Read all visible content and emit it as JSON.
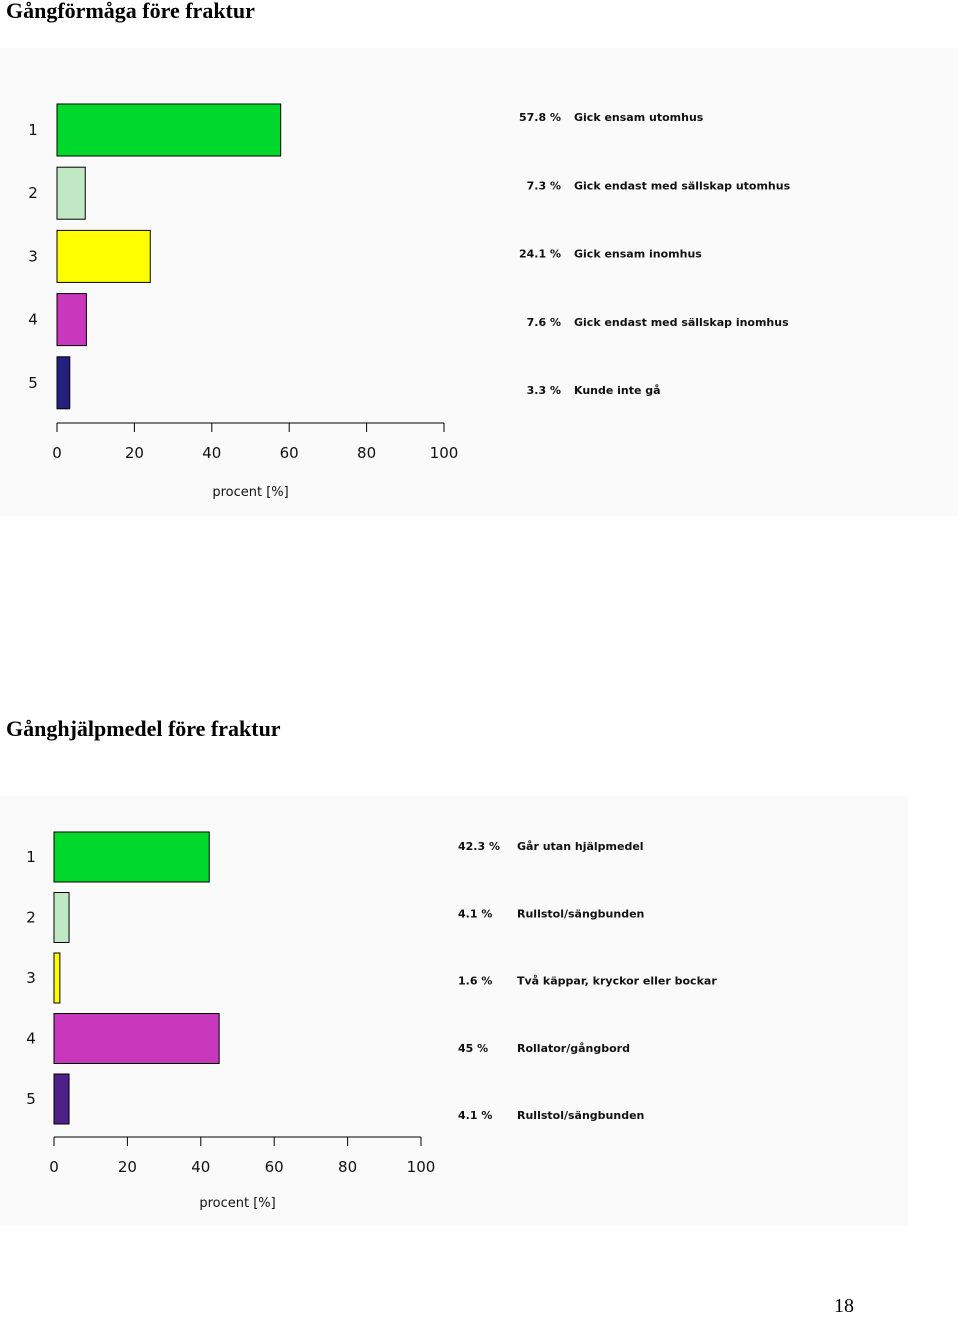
{
  "page": {
    "number": "18"
  },
  "chart_data": [
    {
      "type": "bar",
      "orientation": "horizontal",
      "title": "Gångförmåga före fraktur",
      "xlabel": "procent [%]",
      "xlim": [
        0,
        100
      ],
      "xticks": [
        "0",
        "20",
        "40",
        "60",
        "80",
        "100"
      ],
      "categories": [
        "1",
        "2",
        "3",
        "4",
        "5"
      ],
      "values": [
        57.8,
        7.3,
        24.1,
        7.6,
        3.3
      ],
      "value_labels": [
        "57.8 %",
        "7.3 %",
        "24.1 %",
        "7.6 %",
        "3.3 %"
      ],
      "descriptions": [
        "Gick ensam utomhus",
        "Gick endast med sällskap utomhus",
        "Gick ensam inomhus",
        "Gick endast med sällskap inomhus",
        "Kunde inte gå"
      ],
      "colors": [
        "#00d92b",
        "#c0e8c4",
        "#ffff00",
        "#c838bd",
        "#23207e"
      ],
      "grid": false
    },
    {
      "type": "bar",
      "orientation": "horizontal",
      "title": "Gånghjälpmedel före fraktur",
      "xlabel": "procent [%]",
      "xlim": [
        0,
        100
      ],
      "xticks": [
        "0",
        "20",
        "40",
        "60",
        "80",
        "100"
      ],
      "categories": [
        "1",
        "2",
        "3",
        "4",
        "5"
      ],
      "values": [
        42.3,
        4.1,
        1.6,
        45,
        4.1
      ],
      "value_labels": [
        "42.3 %",
        "4.1 %",
        "1.6 %",
        "45 %",
        "4.1 %"
      ],
      "descriptions": [
        "Går utan hjälpmedel",
        "Rullstol/sängbunden",
        "Två käppar, kryckor eller bockar",
        "Rollator/gångbord",
        "Rullstol/sängbunden"
      ],
      "colors": [
        "#00d92b",
        "#c0e8c4",
        "#ffff00",
        "#c838bd",
        "#4f1f8a"
      ],
      "grid": false
    }
  ]
}
